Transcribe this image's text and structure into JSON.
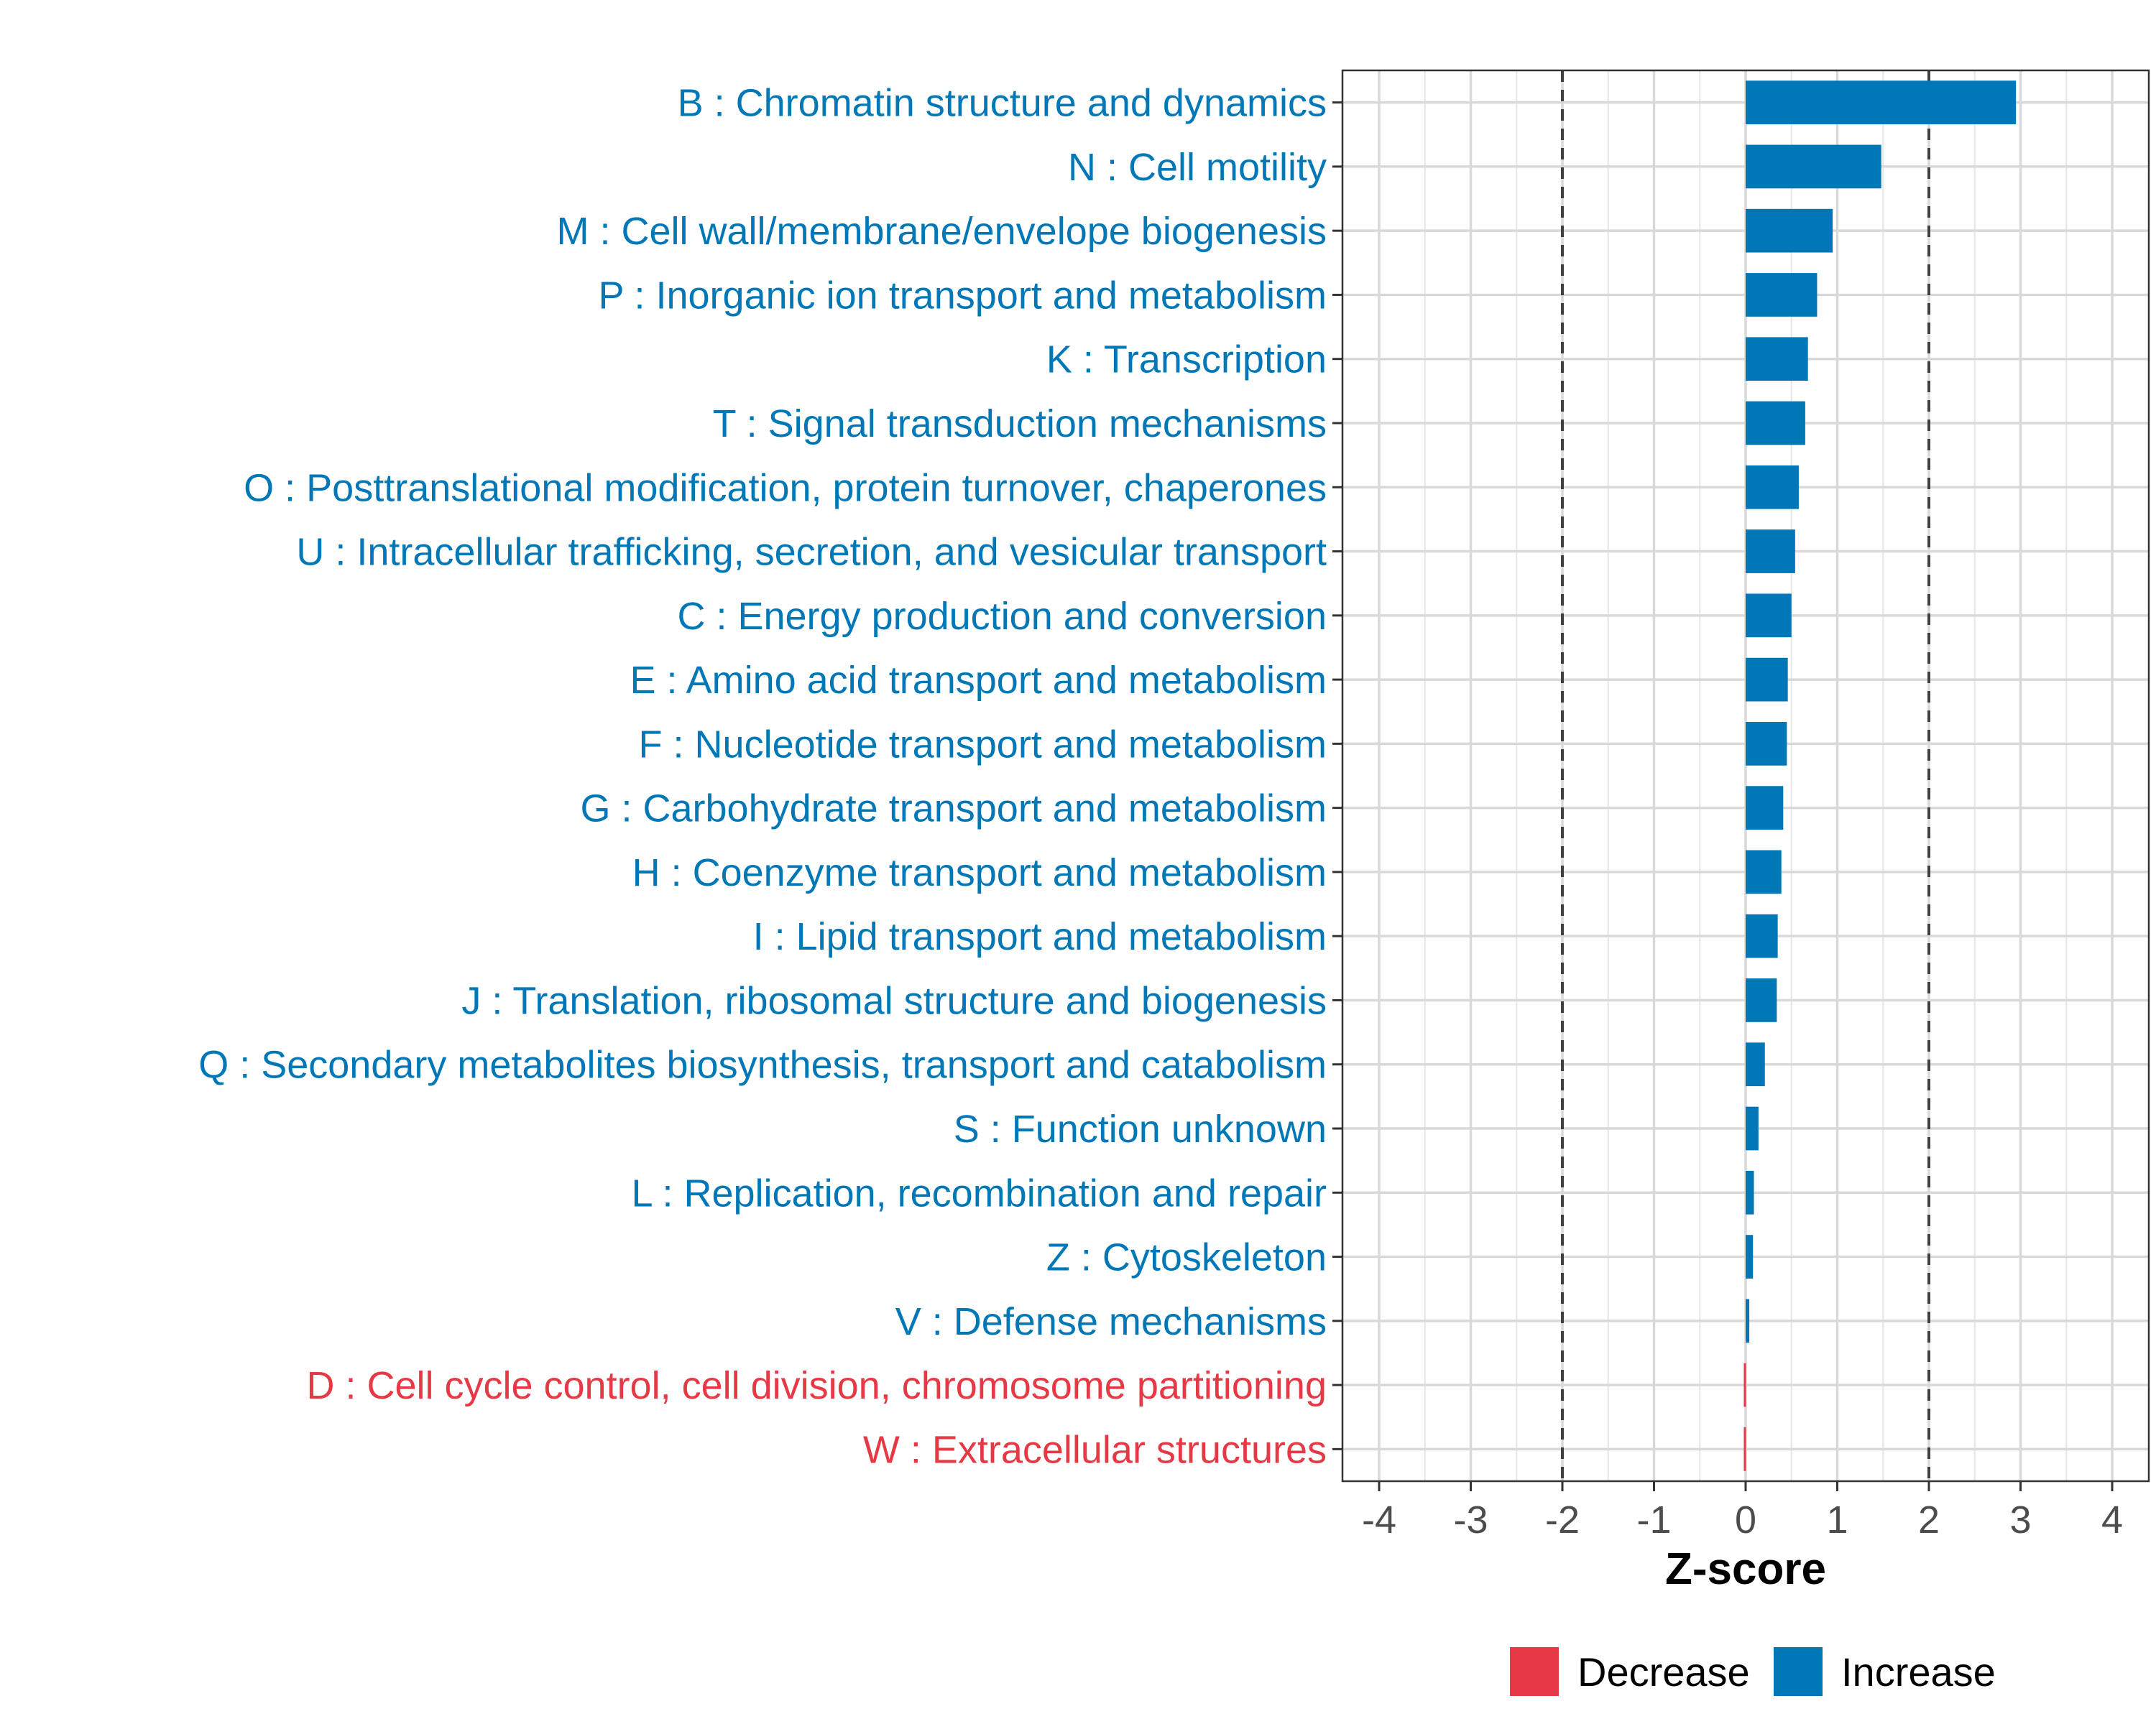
{
  "chart_data": {
    "type": "bar",
    "orientation": "horizontal",
    "title": "",
    "xlabel": "Z-score",
    "ylabel": "",
    "xlim": [
      -4.4,
      4.4
    ],
    "x_ticks": [
      "-4",
      "-3",
      "-2",
      "-1",
      "0",
      "1",
      "2",
      "3",
      "4"
    ],
    "x_tick_values": [
      -4,
      -3,
      -2,
      -1,
      0,
      1,
      2,
      3,
      4
    ],
    "threshold_lines": [
      -2,
      2
    ],
    "grid": true,
    "legend": {
      "position": "bottom",
      "entries": [
        {
          "label": "Decrease",
          "color": "#E63946"
        },
        {
          "label": "Increase",
          "color": "#0077B6"
        }
      ]
    },
    "categories": [
      "B : Chromatin structure and dynamics",
      "N : Cell motility",
      "M : Cell wall/membrane/envelope biogenesis",
      "P : Inorganic ion transport and metabolism",
      "K : Transcription",
      "T : Signal transduction mechanisms",
      "O : Posttranslational modification, protein turnover, chaperones",
      "U : Intracellular trafficking, secretion, and vesicular transport",
      "C : Energy production and conversion",
      "E : Amino acid transport and metabolism",
      "F : Nucleotide transport and metabolism",
      "G : Carbohydrate transport and metabolism",
      "H : Coenzyme transport and metabolism",
      "I : Lipid transport and metabolism",
      "J : Translation, ribosomal structure and biogenesis",
      "Q : Secondary metabolites biosynthesis, transport and catabolism",
      "S : Function unknown",
      "L : Replication, recombination and repair",
      "Z : Cytoskeleton",
      "V : Defense mechanisms",
      "D : Cell cycle control, cell division, chromosome partitioning",
      "W : Extracellular structures"
    ],
    "values": [
      2.95,
      1.48,
      0.95,
      0.78,
      0.68,
      0.65,
      0.58,
      0.54,
      0.5,
      0.46,
      0.45,
      0.41,
      0.39,
      0.35,
      0.34,
      0.21,
      0.14,
      0.09,
      0.08,
      0.04,
      -0.02,
      -0.02
    ],
    "groups": [
      "Increase",
      "Increase",
      "Increase",
      "Increase",
      "Increase",
      "Increase",
      "Increase",
      "Increase",
      "Increase",
      "Increase",
      "Increase",
      "Increase",
      "Increase",
      "Increase",
      "Increase",
      "Increase",
      "Increase",
      "Increase",
      "Increase",
      "Increase",
      "Decrease",
      "Decrease"
    ]
  }
}
